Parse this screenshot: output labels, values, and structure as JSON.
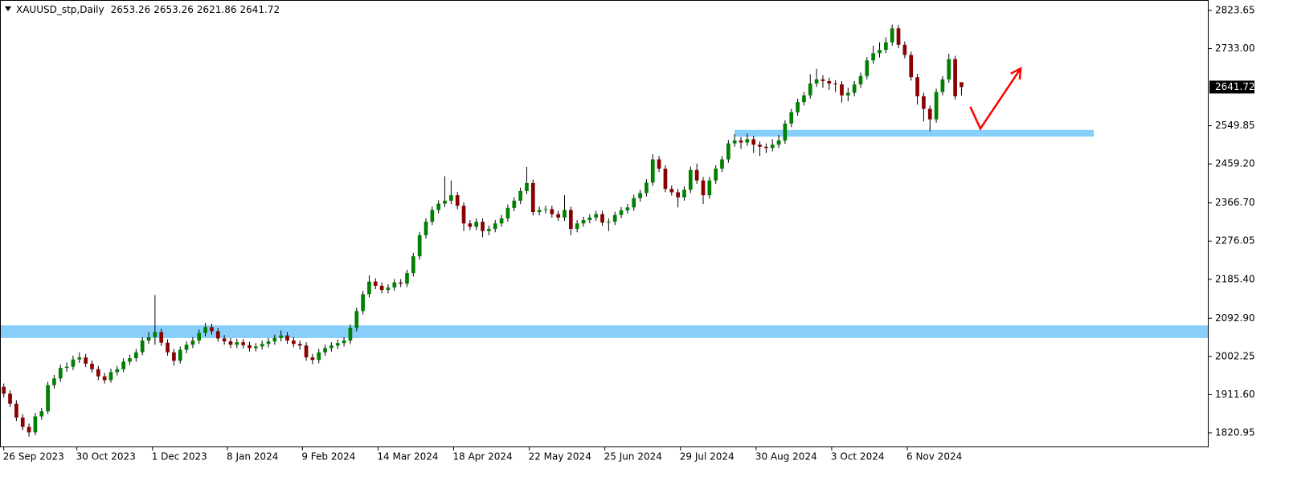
{
  "chart_data": {
    "type": "candlestick",
    "header": {
      "symbol": "XAUUSD_stp,Daily",
      "open": 2653.26,
      "high": 2653.26,
      "low": 2621.86,
      "close": 2641.72
    },
    "candles": {
      "open": [
        1930,
        1914,
        1890,
        1857,
        1835,
        1822,
        1860,
        1872,
        1934,
        1950,
        1975,
        1978,
        1995,
        2000,
        1985,
        1972,
        1955,
        1946,
        1965,
        1972,
        1990,
        1998,
        2012,
        2040,
        2048,
        2060,
        2035,
        2012,
        1992,
        2018,
        2030,
        2040,
        2058,
        2072,
        2062,
        2045,
        2038,
        2030,
        2036,
        2029,
        2022,
        2026,
        2032,
        2038,
        2046,
        2052,
        2040,
        2032,
        2028,
        2000,
        1994,
        2012,
        2022,
        2028,
        2034,
        2040,
        2070,
        2110,
        2150,
        2180,
        2170,
        2160,
        2166,
        2178,
        2175,
        2200,
        2240,
        2290,
        2322,
        2350,
        2365,
        2372,
        2385,
        2360,
        2318,
        2310,
        2322,
        2300,
        2305,
        2318,
        2330,
        2355,
        2372,
        2395,
        2414,
        2345,
        2350,
        2352,
        2340,
        2332,
        2350,
        2305,
        2318,
        2326,
        2332,
        2340,
        2320,
        2322,
        2338,
        2349,
        2356,
        2378,
        2390,
        2415,
        2470,
        2448,
        2400,
        2392,
        2380,
        2398,
        2445,
        2420,
        2385,
        2420,
        2448,
        2470,
        2508,
        2515,
        2510,
        2518,
        2505,
        2500,
        2497,
        2505,
        2515,
        2555,
        2582,
        2606,
        2622,
        2650,
        2660,
        2656,
        2650,
        2648,
        2622,
        2628,
        2648,
        2668,
        2705,
        2722,
        2730,
        2748,
        2781,
        2742,
        2718,
        2665,
        2620,
        2590,
        2565,
        2630,
        2660,
        2708,
        2653.26
      ],
      "high": [
        1938,
        1922,
        1898,
        1865,
        1843,
        1868,
        1880,
        1942,
        1958,
        1983,
        1988,
        2004,
        2012,
        2008,
        1993,
        1980,
        1963,
        1973,
        1980,
        1998,
        2006,
        2020,
        2048,
        2060,
        2148,
        2068,
        2043,
        2020,
        2026,
        2038,
        2048,
        2066,
        2082,
        2080,
        2070,
        2053,
        2046,
        2044,
        2044,
        2037,
        2034,
        2040,
        2046,
        2054,
        2064,
        2060,
        2048,
        2040,
        2036,
        2008,
        2020,
        2030,
        2036,
        2042,
        2048,
        2078,
        2118,
        2158,
        2195,
        2188,
        2178,
        2174,
        2186,
        2186,
        2208,
        2248,
        2298,
        2330,
        2358,
        2373,
        2430,
        2420,
        2393,
        2368,
        2326,
        2330,
        2330,
        2313,
        2326,
        2338,
        2363,
        2380,
        2403,
        2452,
        2422,
        2358,
        2360,
        2360,
        2348,
        2385,
        2358,
        2326,
        2334,
        2340,
        2348,
        2348,
        2330,
        2346,
        2357,
        2364,
        2386,
        2398,
        2423,
        2482,
        2478,
        2456,
        2408,
        2400,
        2406,
        2453,
        2460,
        2428,
        2428,
        2456,
        2478,
        2516,
        2530,
        2523,
        2531,
        2526,
        2513,
        2508,
        2518,
        2528,
        2563,
        2590,
        2614,
        2630,
        2672,
        2685,
        2670,
        2664,
        2658,
        2656,
        2640,
        2656,
        2676,
        2713,
        2740,
        2748,
        2760,
        2790,
        2789,
        2750,
        2726,
        2673,
        2628,
        2598,
        2638,
        2668,
        2721,
        2716,
        2653.26
      ],
      "low": [
        1905,
        1882,
        1849,
        1827,
        1812,
        1815,
        1852,
        1866,
        1926,
        1942,
        1966,
        1970,
        1987,
        1977,
        1964,
        1946,
        1938,
        1940,
        1957,
        1965,
        1982,
        1990,
        2005,
        2032,
        2030,
        2027,
        2004,
        1980,
        1985,
        2010,
        2022,
        2032,
        2050,
        2054,
        2037,
        2030,
        2022,
        2022,
        2021,
        2014,
        2014,
        2018,
        2024,
        2030,
        2038,
        2032,
        2024,
        2018,
        1992,
        1984,
        1986,
        2004,
        2014,
        2020,
        2026,
        2032,
        2062,
        2102,
        2142,
        2162,
        2152,
        2152,
        2158,
        2167,
        2167,
        2192,
        2232,
        2282,
        2314,
        2342,
        2357,
        2364,
        2352,
        2300,
        2302,
        2302,
        2285,
        2290,
        2297,
        2310,
        2322,
        2347,
        2364,
        2387,
        2337,
        2337,
        2342,
        2332,
        2324,
        2324,
        2290,
        2297,
        2310,
        2318,
        2324,
        2312,
        2300,
        2314,
        2330,
        2341,
        2348,
        2370,
        2382,
        2407,
        2440,
        2392,
        2384,
        2356,
        2372,
        2390,
        2412,
        2364,
        2377,
        2412,
        2440,
        2462,
        2500,
        2495,
        2502,
        2485,
        2478,
        2485,
        2489,
        2497,
        2507,
        2547,
        2574,
        2598,
        2614,
        2642,
        2640,
        2635,
        2630,
        2605,
        2608,
        2620,
        2640,
        2660,
        2697,
        2712,
        2722,
        2740,
        2734,
        2710,
        2657,
        2600,
        2560,
        2537,
        2557,
        2622,
        2652,
        2612,
        2621.86
      ],
      "close": [
        1914,
        1890,
        1857,
        1835,
        1822,
        1860,
        1872,
        1934,
        1950,
        1975,
        1978,
        1995,
        2000,
        1985,
        1972,
        1955,
        1946,
        1965,
        1972,
        1990,
        1998,
        2012,
        2040,
        2048,
        2060,
        2035,
        2012,
        1992,
        2018,
        2030,
        2040,
        2058,
        2072,
        2062,
        2045,
        2038,
        2030,
        2036,
        2029,
        2022,
        2026,
        2032,
        2038,
        2046,
        2052,
        2040,
        2032,
        2028,
        2000,
        1994,
        2012,
        2022,
        2028,
        2034,
        2040,
        2070,
        2110,
        2150,
        2180,
        2170,
        2160,
        2166,
        2178,
        2175,
        2200,
        2240,
        2290,
        2322,
        2350,
        2365,
        2372,
        2385,
        2360,
        2318,
        2310,
        2322,
        2300,
        2305,
        2318,
        2330,
        2355,
        2372,
        2395,
        2414,
        2345,
        2350,
        2352,
        2340,
        2332,
        2350,
        2305,
        2318,
        2326,
        2332,
        2340,
        2320,
        2322,
        2338,
        2349,
        2356,
        2378,
        2390,
        2415,
        2470,
        2448,
        2400,
        2392,
        2380,
        2398,
        2445,
        2420,
        2385,
        2420,
        2448,
        2470,
        2508,
        2515,
        2510,
        2518,
        2505,
        2500,
        2497,
        2505,
        2515,
        2555,
        2582,
        2606,
        2622,
        2650,
        2660,
        2656,
        2650,
        2648,
        2622,
        2628,
        2648,
        2668,
        2705,
        2722,
        2730,
        2748,
        2781,
        2742,
        2718,
        2665,
        2620,
        2590,
        2565,
        2630,
        2660,
        2708,
        2620,
        2641.72
      ]
    },
    "up_color": "#008000",
    "down_color": "#8b0000",
    "wick_color": "#000000",
    "xlim": [
      -0.6,
      191.1
    ],
    "xticks": [
      {
        "value": 0,
        "label": "26 Sep 2023"
      },
      {
        "value": 11.6,
        "label": "30 Oct 2023"
      },
      {
        "value": 23.6,
        "label": "1 Dec 2023"
      },
      {
        "value": 35.5,
        "label": "8 Jan 2024"
      },
      {
        "value": 47.4,
        "label": "9 Feb 2024"
      },
      {
        "value": 59.4,
        "label": "14 Mar 2024"
      },
      {
        "value": 71.4,
        "label": "18 Apr 2024"
      },
      {
        "value": 83.4,
        "label": "22 May 2024"
      },
      {
        "value": 95.4,
        "label": "25 Jun 2024"
      },
      {
        "value": 107.4,
        "label": "29 Jul 2024"
      },
      {
        "value": 119.4,
        "label": "30 Aug 2024"
      },
      {
        "value": 131.4,
        "label": "3 Oct 2024"
      },
      {
        "value": 143.4,
        "label": "6 Nov 2024"
      }
    ],
    "ylim": [
      1788.5,
      2848.4
    ],
    "yticks": [
      2823.65,
      {
        "value": 2733,
        "label": "2733.00"
      },
      2549.85,
      {
        "value": 2459.2,
        "label": "2459.20"
      },
      {
        "value": 2366.7,
        "label": "2366.70"
      },
      2276.05,
      {
        "value": 2185.4,
        "label": "2185.40"
      },
      {
        "value": 2092.9,
        "label": "2092.90"
      },
      2002.25,
      {
        "value": 1911.6,
        "label": "1911.60"
      },
      1820.95
    ],
    "last_price": 2641.72,
    "zones": [
      {
        "from": 2046,
        "to": 2076,
        "color": "#87cefa"
      },
      {
        "from": 2524,
        "to": 2540,
        "x": [
          116,
          173
        ],
        "color": "#87cefa"
      }
    ],
    "arrow": {
      "x": [
        153.4,
        155,
        161.4
      ],
      "y": [
        2595,
        2543,
        2686
      ],
      "color": "#ff0000"
    }
  }
}
